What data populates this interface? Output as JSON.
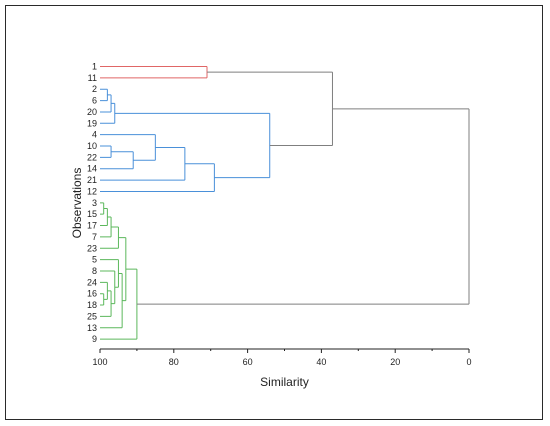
{
  "chart_data": {
    "type": "dendrogram",
    "title": "",
    "xlabel": "Similarity",
    "ylabel": "Observations",
    "xlim": [
      100,
      0
    ],
    "xticks": [
      100,
      80,
      60,
      40,
      20,
      0
    ],
    "grid": false,
    "legend": "none",
    "colors": {
      "cluster_red": "#e06666",
      "cluster_blue": "#4a90d9",
      "cluster_green": "#5cb85c",
      "link_gray": "#7f7f7f",
      "axis": "#222222"
    },
    "leaves": [
      "1",
      "11",
      "2",
      "6",
      "20",
      "19",
      "4",
      "10",
      "22",
      "14",
      "21",
      "12",
      "3",
      "15",
      "17",
      "7",
      "23",
      "5",
      "8",
      "24",
      "16",
      "18",
      "25",
      "13",
      "9"
    ],
    "merges": [
      {
        "id": "m1",
        "children": [
          "1",
          "11"
        ],
        "similarity": 71,
        "color": "cluster_red"
      },
      {
        "id": "m2",
        "children": [
          "2",
          "6"
        ],
        "similarity": 98,
        "color": "cluster_blue"
      },
      {
        "id": "m3",
        "children": [
          "m2",
          "20"
        ],
        "similarity": 97,
        "color": "cluster_blue"
      },
      {
        "id": "m4",
        "children": [
          "m3",
          "19"
        ],
        "similarity": 96,
        "color": "cluster_blue"
      },
      {
        "id": "m5",
        "children": [
          "10",
          "22"
        ],
        "similarity": 97,
        "color": "cluster_blue"
      },
      {
        "id": "m6",
        "children": [
          "m5",
          "14"
        ],
        "similarity": 91,
        "color": "cluster_blue"
      },
      {
        "id": "m7",
        "children": [
          "4",
          "m6"
        ],
        "similarity": 85,
        "color": "cluster_blue"
      },
      {
        "id": "m8",
        "children": [
          "m7",
          "21"
        ],
        "similarity": 77,
        "color": "cluster_blue"
      },
      {
        "id": "m9",
        "children": [
          "m8",
          "12"
        ],
        "similarity": 69,
        "color": "cluster_blue"
      },
      {
        "id": "m10",
        "children": [
          "m4",
          "m9"
        ],
        "similarity": 54,
        "color": "cluster_blue"
      },
      {
        "id": "m11",
        "children": [
          "m1",
          "m10"
        ],
        "similarity": 37,
        "color": "link_gray"
      },
      {
        "id": "m12",
        "children": [
          "3",
          "15"
        ],
        "similarity": 99,
        "color": "cluster_green"
      },
      {
        "id": "m13",
        "children": [
          "m12",
          "17"
        ],
        "similarity": 98,
        "color": "cluster_green"
      },
      {
        "id": "m14",
        "children": [
          "m13",
          "7"
        ],
        "similarity": 97,
        "color": "cluster_green"
      },
      {
        "id": "m15",
        "children": [
          "m14",
          "23"
        ],
        "similarity": 95,
        "color": "cluster_green"
      },
      {
        "id": "m16",
        "children": [
          "16",
          "18"
        ],
        "similarity": 99,
        "color": "cluster_green"
      },
      {
        "id": "m17",
        "children": [
          "24",
          "m16"
        ],
        "similarity": 98,
        "color": "cluster_green"
      },
      {
        "id": "m18",
        "children": [
          "m17",
          "25"
        ],
        "similarity": 97,
        "color": "cluster_green"
      },
      {
        "id": "m19",
        "children": [
          "8",
          "m18"
        ],
        "similarity": 96,
        "color": "cluster_green"
      },
      {
        "id": "m20",
        "children": [
          "5",
          "m19"
        ],
        "similarity": 95,
        "color": "cluster_green"
      },
      {
        "id": "m21",
        "children": [
          "m20",
          "13"
        ],
        "similarity": 94,
        "color": "cluster_green"
      },
      {
        "id": "m22",
        "children": [
          "m15",
          "m21"
        ],
        "similarity": 93,
        "color": "cluster_green"
      },
      {
        "id": "m23",
        "children": [
          "m22",
          "9"
        ],
        "similarity": 90,
        "color": "cluster_green"
      },
      {
        "id": "m24",
        "children": [
          "m11",
          "m23"
        ],
        "similarity": 0,
        "color": "link_gray"
      }
    ]
  }
}
